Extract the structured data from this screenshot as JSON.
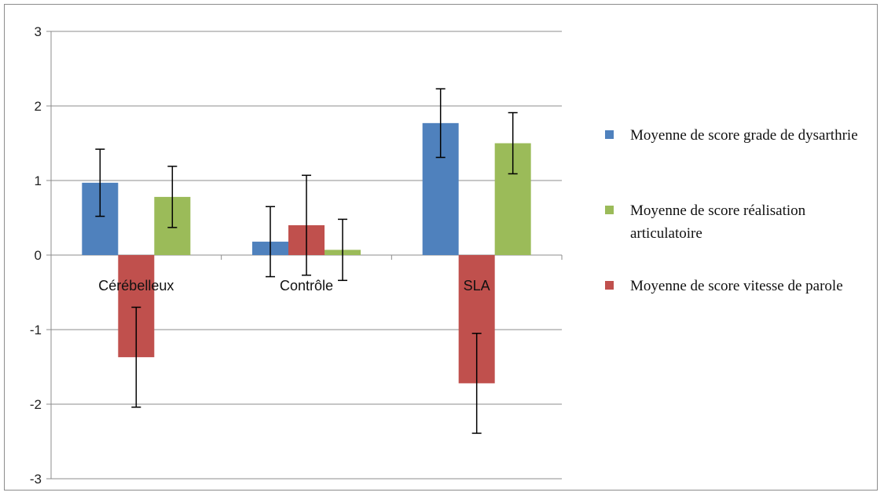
{
  "chart_data": {
    "type": "bar",
    "categories": [
      "Cérébelleux",
      "Contrôle",
      "SLA"
    ],
    "ylim": [
      -3,
      3
    ],
    "yticks": [
      -3,
      -2,
      -1,
      0,
      1,
      2,
      3
    ],
    "grid": true,
    "legend_position": "right",
    "series": [
      {
        "name": "Moyenne de score grade de dysarthrie",
        "color": "#4f81bd",
        "values": [
          0.97,
          0.18,
          1.77
        ],
        "error": [
          0.45,
          0.47,
          0.46
        ]
      },
      {
        "name": "Moyenne de score vitesse de parole",
        "color": "#c0504d",
        "values": [
          -1.37,
          0.4,
          -1.72
        ],
        "error": [
          0.67,
          0.67,
          0.67
        ]
      },
      {
        "name": "Moyenne de score réalisation articulatoire",
        "color": "#9bbb59",
        "values": [
          0.78,
          0.07,
          1.5
        ],
        "error": [
          0.41,
          0.41,
          0.41
        ]
      }
    ],
    "legend_order": [
      0,
      2,
      1
    ]
  }
}
